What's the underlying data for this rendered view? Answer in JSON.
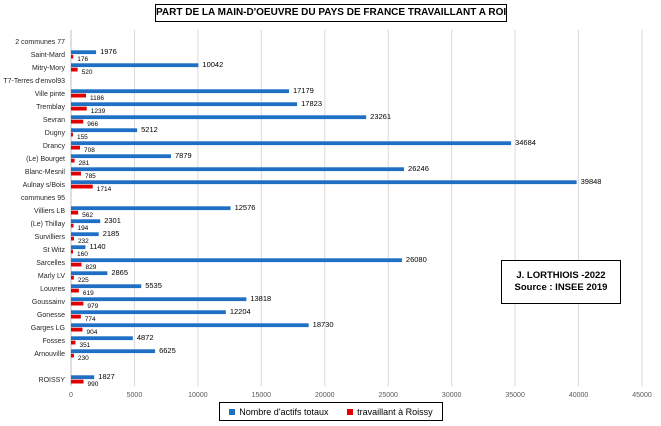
{
  "chart_data": {
    "type": "bar",
    "orientation": "horizontal",
    "title": "PART DE LA MAIN-D'OEUVRE DU PAYS DE FRANCE TRAVAILLANT A ROISSY",
    "categories": [
      "2 communes 77",
      "Saint-Mard",
      "Mitry-Mory",
      "T7-Terres d'envol93",
      "Ville pinte",
      "Tremblay",
      "Sevran",
      "Dugny",
      "Drancy",
      "(Le) Bourget",
      "Blanc-Mesnil",
      "Aulnay s/Bois",
      "communes 95",
      "Villiers LB",
      "(Le) Thillay",
      "Survilliers",
      "St Witz",
      "Sarcelles",
      "Marly LV",
      "Louvres",
      "Goussainv",
      "Gonesse",
      "Garges LG",
      "Fosses",
      "Arnouville",
      "",
      "ROISSY"
    ],
    "series": [
      {
        "name": "Nombre d'actifs totaux",
        "color": "#1f6fc5",
        "values": [
          null,
          1976,
          10042,
          null,
          17179,
          17823,
          23261,
          5212,
          34684,
          7879,
          26246,
          39848,
          null,
          12576,
          2301,
          2185,
          1140,
          26080,
          2865,
          5535,
          13818,
          12204,
          18730,
          4872,
          6625,
          null,
          1827
        ]
      },
      {
        "name": "travaillant à Roissy",
        "color": "#e00000",
        "values": [
          null,
          176,
          520,
          null,
          1186,
          1239,
          966,
          155,
          708,
          281,
          785,
          1714,
          null,
          562,
          194,
          232,
          160,
          829,
          225,
          619,
          979,
          774,
          904,
          351,
          230,
          null,
          990
        ]
      }
    ],
    "xlim": [
      0,
      45000
    ],
    "xticks": [
      0,
      5000,
      10000,
      15000,
      20000,
      25000,
      30000,
      35000,
      40000,
      45000
    ],
    "grid": "vertical",
    "legend": "bottom",
    "annotation": {
      "line1": "J. LORTHIOIS -2022",
      "line2": "Source : INSEE 2019"
    }
  }
}
